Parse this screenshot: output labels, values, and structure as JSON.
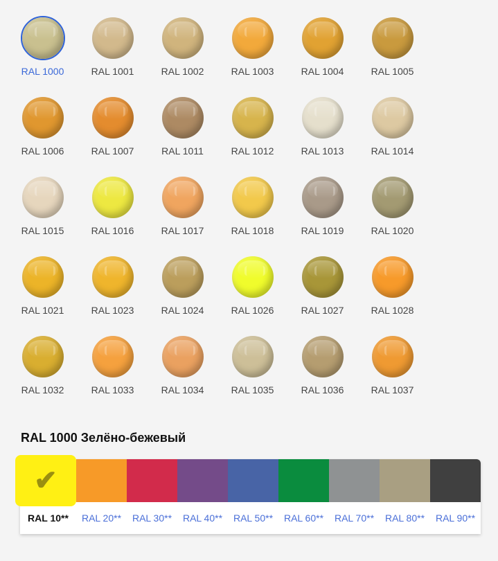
{
  "colors": [
    {
      "label": "RAL 1000",
      "hex": "#c9c08f",
      "selected": true
    },
    {
      "label": "RAL 1001",
      "hex": "#d2b98c"
    },
    {
      "label": "RAL 1002",
      "hex": "#d0b47d"
    },
    {
      "label": "RAL 1003",
      "hex": "#f2a93b"
    },
    {
      "label": "RAL 1004",
      "hex": "#e1a232"
    },
    {
      "label": "RAL 1005",
      "hex": "#c99a3e"
    },
    {
      "label": "RAL 1006",
      "hex": "#e0972f"
    },
    {
      "label": "RAL 1007",
      "hex": "#e48c2e"
    },
    {
      "label": "RAL 1011",
      "hex": "#ad8a63"
    },
    {
      "label": "RAL 1012",
      "hex": "#d7b44c"
    },
    {
      "label": "RAL 1013",
      "hex": "#e5dfcc"
    },
    {
      "label": "RAL 1014",
      "hex": "#ddc9a2"
    },
    {
      "label": "RAL 1015",
      "hex": "#e6d6bd"
    },
    {
      "label": "RAL 1016",
      "hex": "#ede841"
    },
    {
      "label": "RAL 1017",
      "hex": "#f0a55f"
    },
    {
      "label": "RAL 1018",
      "hex": "#f2c94b"
    },
    {
      "label": "RAL 1019",
      "hex": "#a99a89"
    },
    {
      "label": "RAL 1020",
      "hex": "#a39a72"
    },
    {
      "label": "RAL 1021",
      "hex": "#ecb428"
    },
    {
      "label": "RAL 1023",
      "hex": "#efb52c"
    },
    {
      "label": "RAL 1024",
      "hex": "#bb9e5c"
    },
    {
      "label": "RAL 1026",
      "hex": "#f0fc2c"
    },
    {
      "label": "RAL 1027",
      "hex": "#a89638"
    },
    {
      "label": "RAL 1028",
      "hex": "#f79a2a"
    },
    {
      "label": "RAL 1032",
      "hex": "#d9ae30"
    },
    {
      "label": "RAL 1033",
      "hex": "#f5a13e"
    },
    {
      "label": "RAL 1034",
      "hex": "#eaa160"
    },
    {
      "label": "RAL 1035",
      "hex": "#cdbf98"
    },
    {
      "label": "RAL 1036",
      "hex": "#b59d70"
    },
    {
      "label": "RAL 1037",
      "hex": "#ef9a32"
    }
  ],
  "selected_title": "RAL 1000 Зелёно-бежевый",
  "groups": [
    {
      "label": "RAL 10**",
      "hex": "#fff014",
      "selected": true
    },
    {
      "label": "RAL 20**",
      "hex": "#f79a28"
    },
    {
      "label": "RAL 30**",
      "hex": "#d22b4b"
    },
    {
      "label": "RAL 40**",
      "hex": "#744b89"
    },
    {
      "label": "RAL 50**",
      "hex": "#4864a6"
    },
    {
      "label": "RAL 60**",
      "hex": "#0a8c3e"
    },
    {
      "label": "RAL 70**",
      "hex": "#8f9293"
    },
    {
      "label": "RAL 80**",
      "hex": "#a99f82"
    },
    {
      "label": "RAL 90**",
      "hex": "#404040"
    }
  ],
  "check_icon": "✔"
}
